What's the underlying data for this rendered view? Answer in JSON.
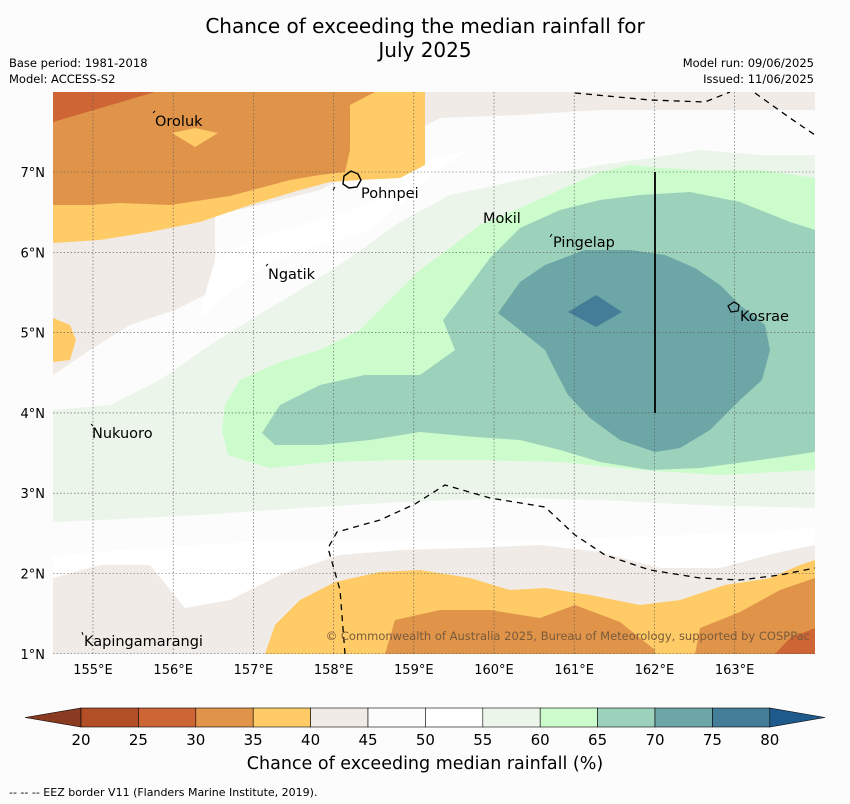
{
  "title_line1": "Chance of exceeding the median rainfall for",
  "title_line2": "July 2025",
  "base_period": "Base period: 1981-2018",
  "model": "Model: ACCESS-S2",
  "model_run": "Model run: 09/06/2025",
  "issued": "Issued: 11/06/2025",
  "map": {
    "lon_ticks": [
      "155°E",
      "156°E",
      "157°E",
      "158°E",
      "159°E",
      "160°E",
      "161°E",
      "162°E",
      "163°E"
    ],
    "lat_ticks": [
      "7°N",
      "6°N",
      "5°N",
      "4°N",
      "3°N",
      "2°N",
      "1°N"
    ],
    "places": {
      "oroluk": "Oroluk",
      "pohnpei": "Pohnpei",
      "mokil": "Mokil",
      "pingelap": "Pingelap",
      "ngatik": "Ngatik",
      "kosrae": "Kosrae",
      "nukuoro": "Nukuoro",
      "kapingamarangi": "Kapingamarangi"
    },
    "copyright": "© Commonwealth of Australia 2025, Bureau of Meteorology, supported by COSPPac"
  },
  "colorbar": {
    "ticks": [
      "20",
      "25",
      "30",
      "35",
      "40",
      "45",
      "50",
      "55",
      "60",
      "65",
      "70",
      "75",
      "80"
    ],
    "label": "Chance of exceeding median rainfall (%)",
    "colors": [
      "#b24f26",
      "#cd6535",
      "#e0944a",
      "#fecb67",
      "#f0ebe6",
      "#fbfcfb",
      "#ffffff",
      "#ebf5ea",
      "#ccfccc",
      "#9cd1bb",
      "#6ca6a6",
      "#437d97"
    ],
    "under_color": "#8a3a20",
    "over_color": "#1e5a8c"
  },
  "footnote": "--  --  -- EEZ border V11 (Flanders Marine Institute, 2019)."
}
